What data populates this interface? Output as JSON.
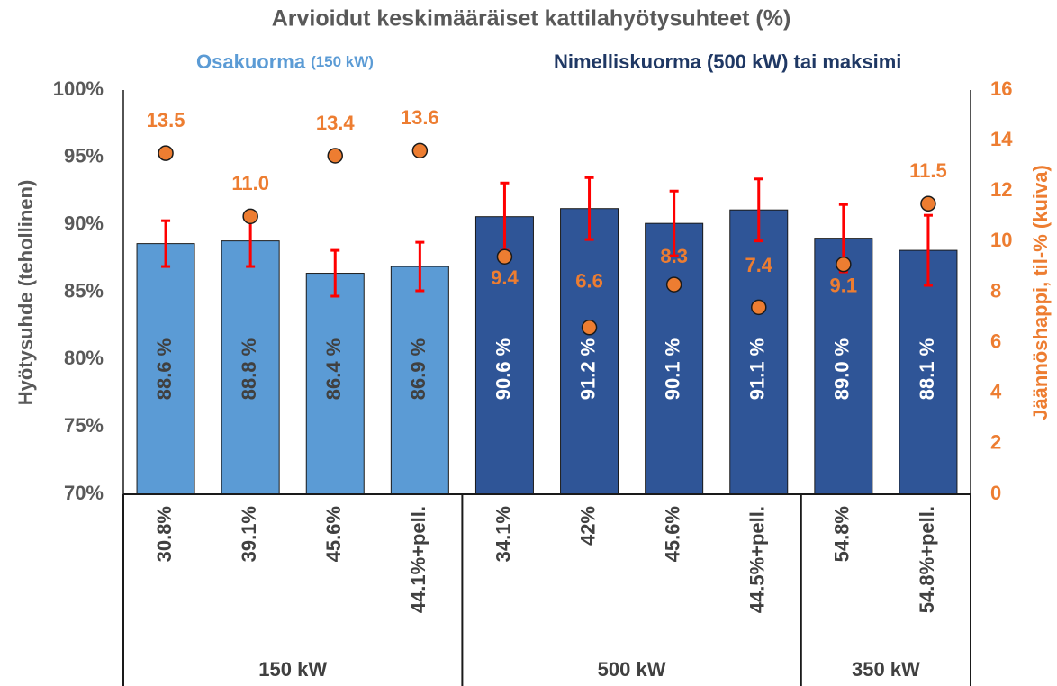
{
  "chart_data": {
    "type": "bar",
    "title": "Arvioidut keskimääräiset kattilahyötysuhteet (%)",
    "annotations": [
      {
        "text": "Osakuorma",
        "small": "(150 kW)",
        "color": "#5b9bd5"
      },
      {
        "text": "Nimelliskuorma (500 kW) tai maksimi",
        "color": "#1f3864"
      }
    ],
    "y_label": "Hyötysuhde (tehollinen)",
    "y2_label": "Jäännöshappi, til-% (kuiva)",
    "groups": [
      {
        "name": "150 kW",
        "categories": [
          "30.8%",
          "39.1%",
          "45.6%",
          "44.1%+pell."
        ]
      },
      {
        "name": "500 kW",
        "categories": [
          "34.1%",
          "42%",
          "45.6%",
          "44.5%+pell."
        ]
      },
      {
        "name": "350 kW",
        "categories": [
          "54.8%",
          "54.8%+pell."
        ]
      }
    ],
    "ylim": [
      70,
      100
    ],
    "yticks": [
      {
        "value": 70,
        "label": "70%"
      },
      {
        "value": 75,
        "label": "75%"
      },
      {
        "value": 80,
        "label": "80%"
      },
      {
        "value": 85,
        "label": "85%"
      },
      {
        "value": 90,
        "label": "90%"
      },
      {
        "value": 95,
        "label": "95%"
      },
      {
        "value": 100,
        "label": "100%"
      }
    ],
    "y2lim": [
      0,
      16
    ],
    "y2ticks": [
      0,
      2,
      4,
      6,
      8,
      10,
      12,
      14,
      16
    ],
    "grid": false,
    "series": [
      {
        "type": "bar",
        "colors": [
          "#5b9bd5",
          "#5b9bd5",
          "#5b9bd5",
          "#5b9bd5",
          "#2f5597",
          "#2f5597",
          "#2f5597",
          "#2f5597",
          "#2f5597",
          "#2f5597"
        ],
        "label_colors": [
          "#404040",
          "#404040",
          "#404040",
          "#404040",
          "#ffffff",
          "#ffffff",
          "#ffffff",
          "#ffffff",
          "#ffffff",
          "#ffffff"
        ],
        "values": [
          88.6,
          88.8,
          86.4,
          86.9,
          90.6,
          91.2,
          90.1,
          91.1,
          89.0,
          88.1
        ],
        "value_labels": [
          "88.6 %",
          "88.8 %",
          "86.4 %",
          "86.9 %",
          "90.6 %",
          "91.2 %",
          "90.1 %",
          "91.1 %",
          "89.0 %",
          "88.1 %"
        ],
        "errors": [
          1.7,
          1.9,
          1.7,
          1.8,
          2.5,
          2.3,
          2.4,
          2.3,
          2.5,
          2.6
        ],
        "error_color": "#ff0000"
      },
      {
        "type": "scatter",
        "axis": "y2",
        "color": "#ed7d31",
        "values": [
          13.5,
          11.0,
          13.4,
          13.6,
          9.4,
          6.6,
          8.3,
          7.4,
          9.1,
          11.5
        ],
        "value_labels": [
          "13.5",
          "11.0",
          "13.4",
          "13.6",
          "9.4",
          "6.6",
          "8.3",
          "7.4",
          "9.1",
          "11.5"
        ]
      }
    ]
  }
}
